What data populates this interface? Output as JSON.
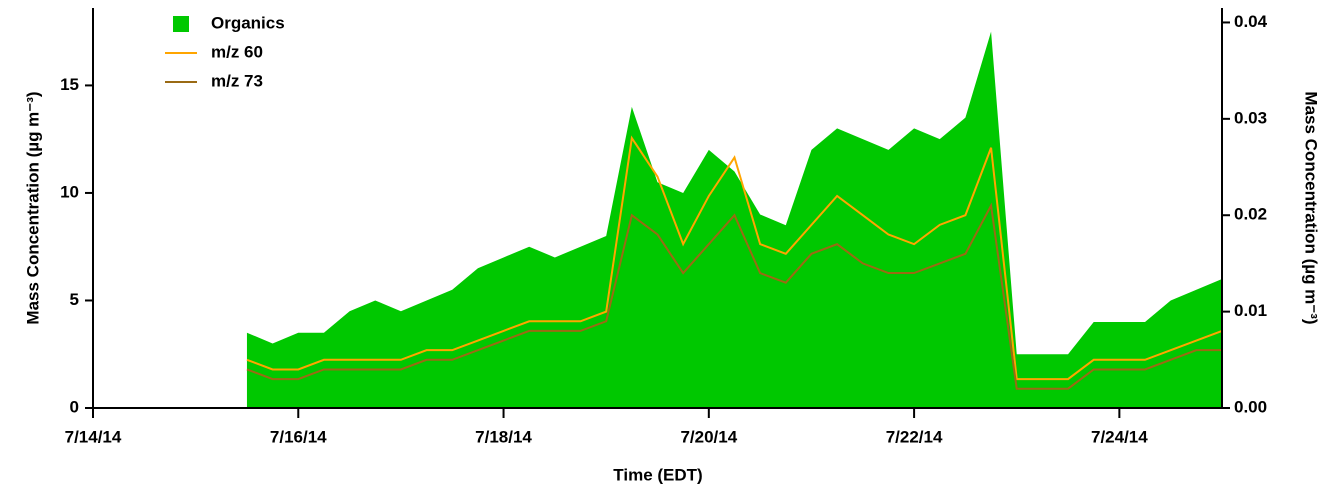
{
  "chart_data": {
    "type": "line",
    "xlabel": "Time (EDT)",
    "ylabel": "Mass Concentration (µg m⁻³)",
    "y2label": "Mass Concentration (µg m⁻³)",
    "x": [
      "2014-07-15T12:00",
      "2014-07-15T18:00",
      "2014-07-16T00:00",
      "2014-07-16T06:00",
      "2014-07-16T12:00",
      "2014-07-16T18:00",
      "2014-07-17T00:00",
      "2014-07-17T06:00",
      "2014-07-17T12:00",
      "2014-07-17T18:00",
      "2014-07-18T00:00",
      "2014-07-18T06:00",
      "2014-07-18T12:00",
      "2014-07-18T18:00",
      "2014-07-19T00:00",
      "2014-07-19T06:00",
      "2014-07-19T12:00",
      "2014-07-19T18:00",
      "2014-07-20T00:00",
      "2014-07-20T06:00",
      "2014-07-20T12:00",
      "2014-07-20T18:00",
      "2014-07-21T00:00",
      "2014-07-21T06:00",
      "2014-07-21T12:00",
      "2014-07-21T18:00",
      "2014-07-22T00:00",
      "2014-07-22T06:00",
      "2014-07-22T12:00",
      "2014-07-22T18:00",
      "2014-07-23T00:00",
      "2014-07-23T06:00",
      "2014-07-23T12:00",
      "2014-07-23T18:00",
      "2014-07-24T00:00",
      "2014-07-24T06:00",
      "2014-07-24T12:00",
      "2014-07-24T18:00",
      "2014-07-25T00:00"
    ],
    "series": [
      {
        "name": "Organics",
        "color": "#00c800",
        "style": "area",
        "values": [
          3.5,
          3,
          3.5,
          3.5,
          4.5,
          5,
          4.5,
          5,
          5.5,
          6.5,
          7,
          7.5,
          7,
          7.5,
          8,
          14,
          10.5,
          10,
          12,
          11,
          9,
          8.5,
          12,
          13,
          12.5,
          12,
          13,
          12.5,
          13.5,
          17.5,
          2.5,
          2.5,
          2.5,
          4,
          4,
          4,
          5,
          5.5,
          6
        ]
      },
      {
        "name": "m/z 60",
        "color": "#ffa500",
        "axis": "y2",
        "values": [
          0.005,
          0.004,
          0.004,
          0.005,
          0.005,
          0.005,
          0.005,
          0.006,
          0.006,
          0.007,
          0.008,
          0.009,
          0.009,
          0.009,
          0.01,
          0.028,
          0.024,
          0.017,
          0.022,
          0.026,
          0.017,
          0.016,
          0.019,
          0.022,
          0.02,
          0.018,
          0.017,
          0.019,
          0.02,
          0.027,
          0.003,
          0.003,
          0.003,
          0.005,
          0.005,
          0.005,
          0.006,
          0.007,
          0.008
        ]
      },
      {
        "name": "m/z 73",
        "color": "#9a6a14",
        "axis": "y2",
        "values": [
          0.004,
          0.003,
          0.003,
          0.004,
          0.004,
          0.004,
          0.004,
          0.005,
          0.005,
          0.006,
          0.007,
          0.008,
          0.008,
          0.008,
          0.009,
          0.02,
          0.018,
          0.014,
          0.017,
          0.02,
          0.014,
          0.013,
          0.016,
          0.017,
          0.015,
          0.014,
          0.014,
          0.015,
          0.016,
          0.021,
          0.002,
          0.002,
          0.002,
          0.004,
          0.004,
          0.004,
          0.005,
          0.006,
          0.006
        ]
      }
    ],
    "xlim": [
      "2014-07-14T00:00",
      "2014-07-25T00:00"
    ],
    "xticks": [
      {
        "value": "2014-07-14T00:00",
        "label": "7/14/14"
      },
      {
        "value": "2014-07-16T00:00",
        "label": "7/16/14"
      },
      {
        "value": "2014-07-18T00:00",
        "label": "7/18/14"
      },
      {
        "value": "2014-07-20T00:00",
        "label": "7/20/14"
      },
      {
        "value": "2014-07-22T00:00",
        "label": "7/22/14"
      },
      {
        "value": "2014-07-24T00:00",
        "label": "7/24/14"
      }
    ],
    "ylim": [
      0,
      18.6
    ],
    "yticks": [
      0,
      5,
      10,
      15
    ],
    "y2lim": [
      0,
      0.0415
    ],
    "y2ticks": [
      {
        "value": 0,
        "label": "0.00"
      },
      0.01,
      0.02,
      0.03,
      0.04
    ],
    "legend": "top-left"
  }
}
